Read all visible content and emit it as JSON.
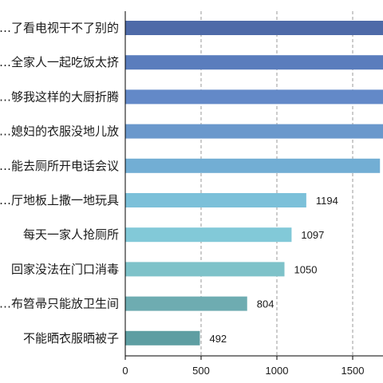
{
  "chart_data": {
    "type": "bar",
    "orientation": "horizontal",
    "title": "",
    "xlabel": "",
    "ylabel": "",
    "categories": [
      "…了看电视干不了别的",
      "…全家人一起吃饭太挤",
      "…够我这样的大厨折腾",
      "…媳妇的衣服没地儿放",
      "…能去厕所开电话会议",
      "…厅地板上撒一地玩具",
      "每天一家人抢厕所",
      "回家没法在门口消毒",
      "…布笤帚只能放卫生间",
      "不能晒衣服晒被子"
    ],
    "values": [
      1900,
      1850,
      1800,
      1750,
      1680,
      1194,
      1097,
      1050,
      804,
      492
    ],
    "data_labels": [
      null,
      null,
      null,
      null,
      null,
      "1194",
      "1097",
      "1050",
      "804",
      "492"
    ],
    "xlim": [
      0,
      1700
    ],
    "xticks": [
      0,
      500,
      1000,
      1500
    ],
    "xtick_labels": [
      "0",
      "500",
      "1000",
      "1500"
    ],
    "grid": true,
    "legend": "none",
    "colors": [
      "#4e6aa8",
      "#5a7dbd",
      "#6389c8",
      "#6a98cc",
      "#72aed4",
      "#7bc0d9",
      "#82c9d8",
      "#7ec2c9",
      "#6eacb1",
      "#5e9ea2"
    ]
  }
}
